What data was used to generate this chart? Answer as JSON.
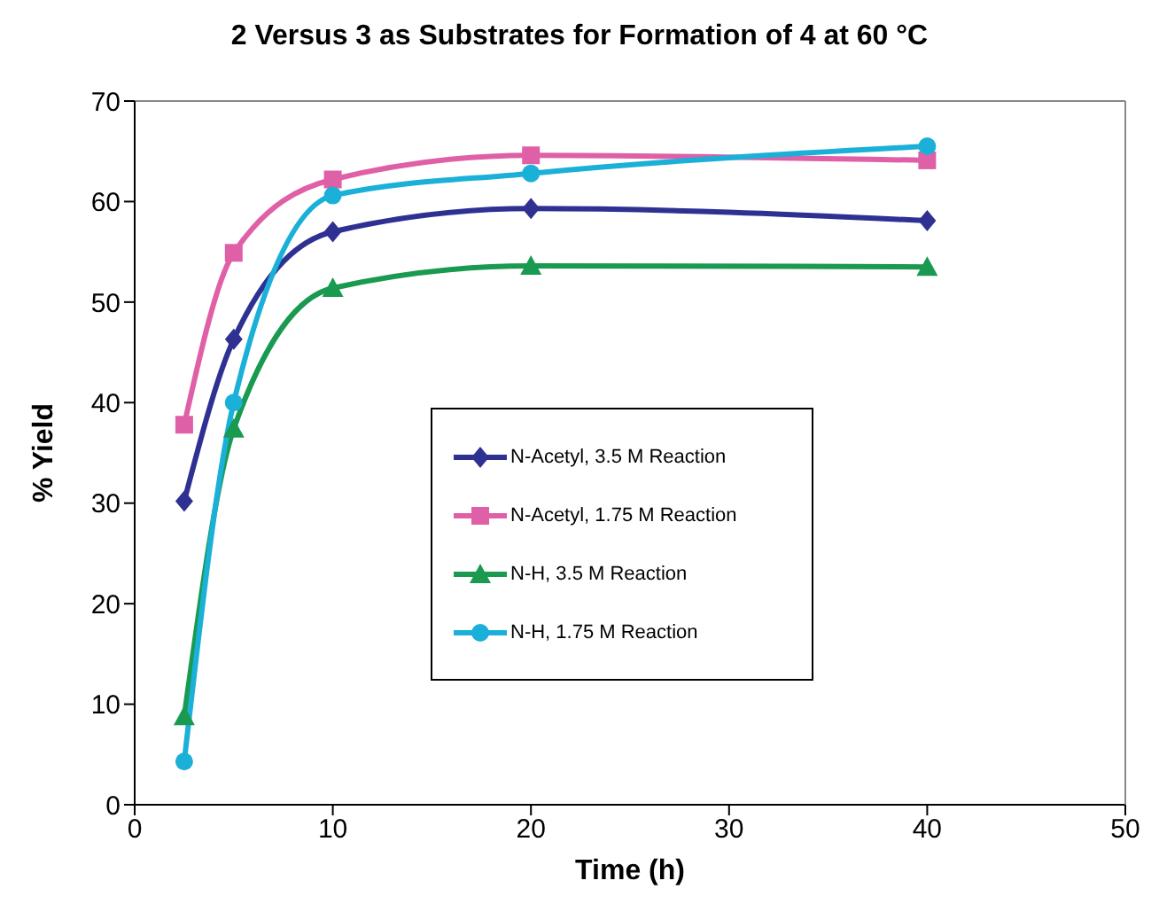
{
  "chart_data": {
    "type": "line",
    "title": "2 Versus 3 as Substrates for Formation of 4 at 60 °C",
    "xlabel": "Time (h)",
    "ylabel": "% Yield",
    "x": [
      2.5,
      5,
      10,
      20,
      40
    ],
    "xlim": [
      0,
      50
    ],
    "xticks": [
      0,
      10,
      20,
      30,
      40,
      50
    ],
    "ylim": [
      0,
      70
    ],
    "yticks": [
      0,
      10,
      20,
      30,
      40,
      50,
      60,
      70
    ],
    "grid": false,
    "legend": "center",
    "line_style": "solid",
    "series": [
      {
        "name": "N-Acetyl, 3.5 M Reaction",
        "color": "#2e3192",
        "marker": "diamond",
        "values": [
          30.2,
          46.3,
          57.0,
          59.3,
          58.1
        ]
      },
      {
        "name": "N-Acetyl, 1.75 M Reaction",
        "color": "#e060a8",
        "marker": "square",
        "values": [
          37.8,
          54.9,
          62.2,
          64.6,
          64.1
        ]
      },
      {
        "name": "N-H, 3.5 M Reaction",
        "color": "#1a9a50",
        "marker": "triangle",
        "values": [
          8.8,
          37.4,
          51.4,
          53.6,
          53.5
        ]
      },
      {
        "name": "N-H, 1.75 M Reaction",
        "color": "#1ab0d8",
        "marker": "circle",
        "values": [
          4.3,
          40.0,
          60.6,
          62.8,
          65.5
        ]
      }
    ]
  }
}
